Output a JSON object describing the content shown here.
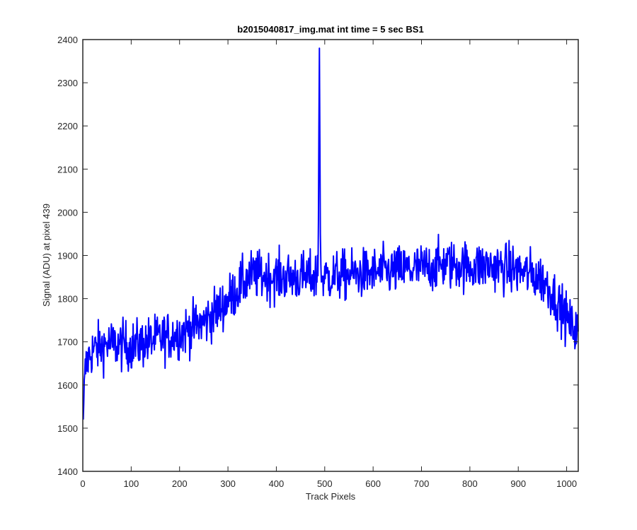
{
  "chart_data": {
    "type": "line",
    "title": "b2015040817_img.mat int time = 5 sec   BS1",
    "xlabel": "Track Pixels",
    "ylabel": "Signal (ADU) at pixel 439",
    "xlim": [
      0,
      1024
    ],
    "ylim": [
      1400,
      2400
    ],
    "xticks": [
      0,
      100,
      200,
      300,
      400,
      500,
      600,
      700,
      800,
      900,
      1000
    ],
    "yticks": [
      1400,
      1500,
      1600,
      1700,
      1800,
      1900,
      2000,
      2100,
      2200,
      2300,
      2400
    ],
    "grid": false,
    "legend": "none",
    "line_color": "#0000FF",
    "axis_color": "#262626",
    "trend": {
      "x": [
        0,
        2,
        5,
        10,
        20,
        50,
        100,
        150,
        200,
        250,
        270,
        290,
        310,
        330,
        350,
        400,
        450,
        500,
        550,
        600,
        650,
        700,
        750,
        800,
        850,
        900,
        930,
        950,
        970,
        990,
        1010,
        1024
      ],
      "y": [
        1480,
        1560,
        1630,
        1660,
        1680,
        1695,
        1690,
        1705,
        1720,
        1745,
        1765,
        1785,
        1810,
        1835,
        1855,
        1850,
        1850,
        1850,
        1855,
        1860,
        1865,
        1870,
        1880,
        1875,
        1875,
        1865,
        1855,
        1845,
        1815,
        1775,
        1735,
        1725
      ]
    },
    "peaks": {
      "x": [
        485,
        487,
        488,
        489,
        490,
        491,
        492,
        494
      ],
      "y": [
        1900,
        1980,
        2200,
        2380,
        2160,
        1950,
        1880,
        1840
      ]
    },
    "noise_amplitude": 38,
    "n_points": 1024
  }
}
